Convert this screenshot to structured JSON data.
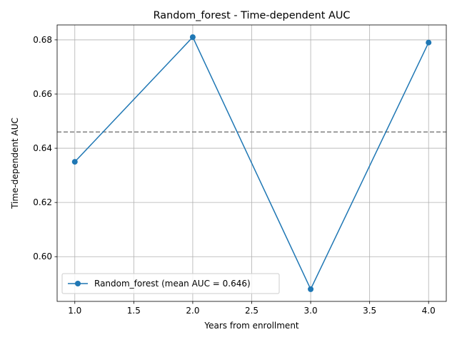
{
  "chart_data": {
    "type": "line",
    "title": "Random_forest - Time-dependent AUC",
    "xlabel": "Years from enrollment",
    "ylabel": "Time-dependent AUC",
    "xlim": [
      0.85,
      4.15
    ],
    "ylim": [
      0.5835,
      0.6855
    ],
    "x_ticks": [
      "1.0",
      "1.5",
      "2.0",
      "2.5",
      "3.0",
      "3.5",
      "4.0"
    ],
    "y_ticks": [
      "0.60",
      "0.62",
      "0.64",
      "0.66",
      "0.68"
    ],
    "grid": true,
    "legend_position": "lower-left",
    "series": [
      {
        "name": "Random_forest (mean AUC = 0.646)",
        "color": "#1f77b4",
        "marker": "circle",
        "x": [
          1.0,
          2.0,
          3.0,
          4.0
        ],
        "y": [
          0.635,
          0.681,
          0.588,
          0.679
        ]
      }
    ],
    "reference_line": {
      "orientation": "horizontal",
      "value": 0.646,
      "style": "dashed",
      "color": "#808080"
    }
  }
}
